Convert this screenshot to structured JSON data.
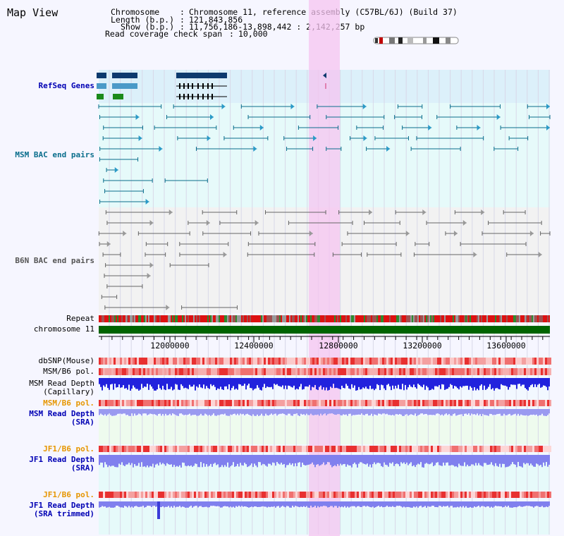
{
  "page": {
    "title": "Map View"
  },
  "info": {
    "chromosome_key": "Chromosome",
    "chromosome_val": "Chromosome 11, reference assembly (C57BL/6J) (Build 37)",
    "length_key": "Length (b.p.)",
    "length_val": "121,843,856",
    "show_key": "Show (b.p.)",
    "show_val": "11,756,186-13,898,442 : 2,142,257 bp",
    "coverage_key": "Read coverage check span",
    "coverage_val": "10,000",
    "sep": ":"
  },
  "tracks": {
    "refseq": "RefSeq Genes",
    "msm_bac": "MSM BAC end pairs",
    "b6n_bac": "B6N BAC end pairs",
    "repeat": "Repeat",
    "chrom": "chromosome 11",
    "dbsnp": "dbSNP(Mouse)",
    "msm_pol1": "MSM/B6 pol.",
    "msm_depth_cap_1": "MSM Read Depth",
    "msm_depth_cap_2": "(Capillary)",
    "msm_pol2": "MSM/B6 pol.",
    "msm_depth_sra_1": "MSM Read Depth",
    "msm_depth_sra_2": "(SRA)",
    "jf1_pol1": "JF1/B6 pol.",
    "jf1_depth_sra_1": "JF1 Read Depth",
    "jf1_depth_sra_2": "(SRA)",
    "jf1_pol2": "JF1/B6 pol.",
    "jf1_depth_trim_1": "JF1 Read Depth",
    "jf1_depth_trim_2": "(SRA trimmed)"
  },
  "axis": {
    "ticks": [
      "12000000",
      "12400000",
      "12800000",
      "13200000",
      "13600000"
    ]
  },
  "colors": {
    "refseq_bg": "#dcf0fa",
    "msm_bac_bg": "#e6fafa",
    "b6n_bg": "#f2f2f2",
    "highlight": "#f6c4f0",
    "chrom": "#006400",
    "msm_label": "#0a6e8c",
    "sra_label": "#0000b4",
    "jf_label": "#e69600"
  }
}
